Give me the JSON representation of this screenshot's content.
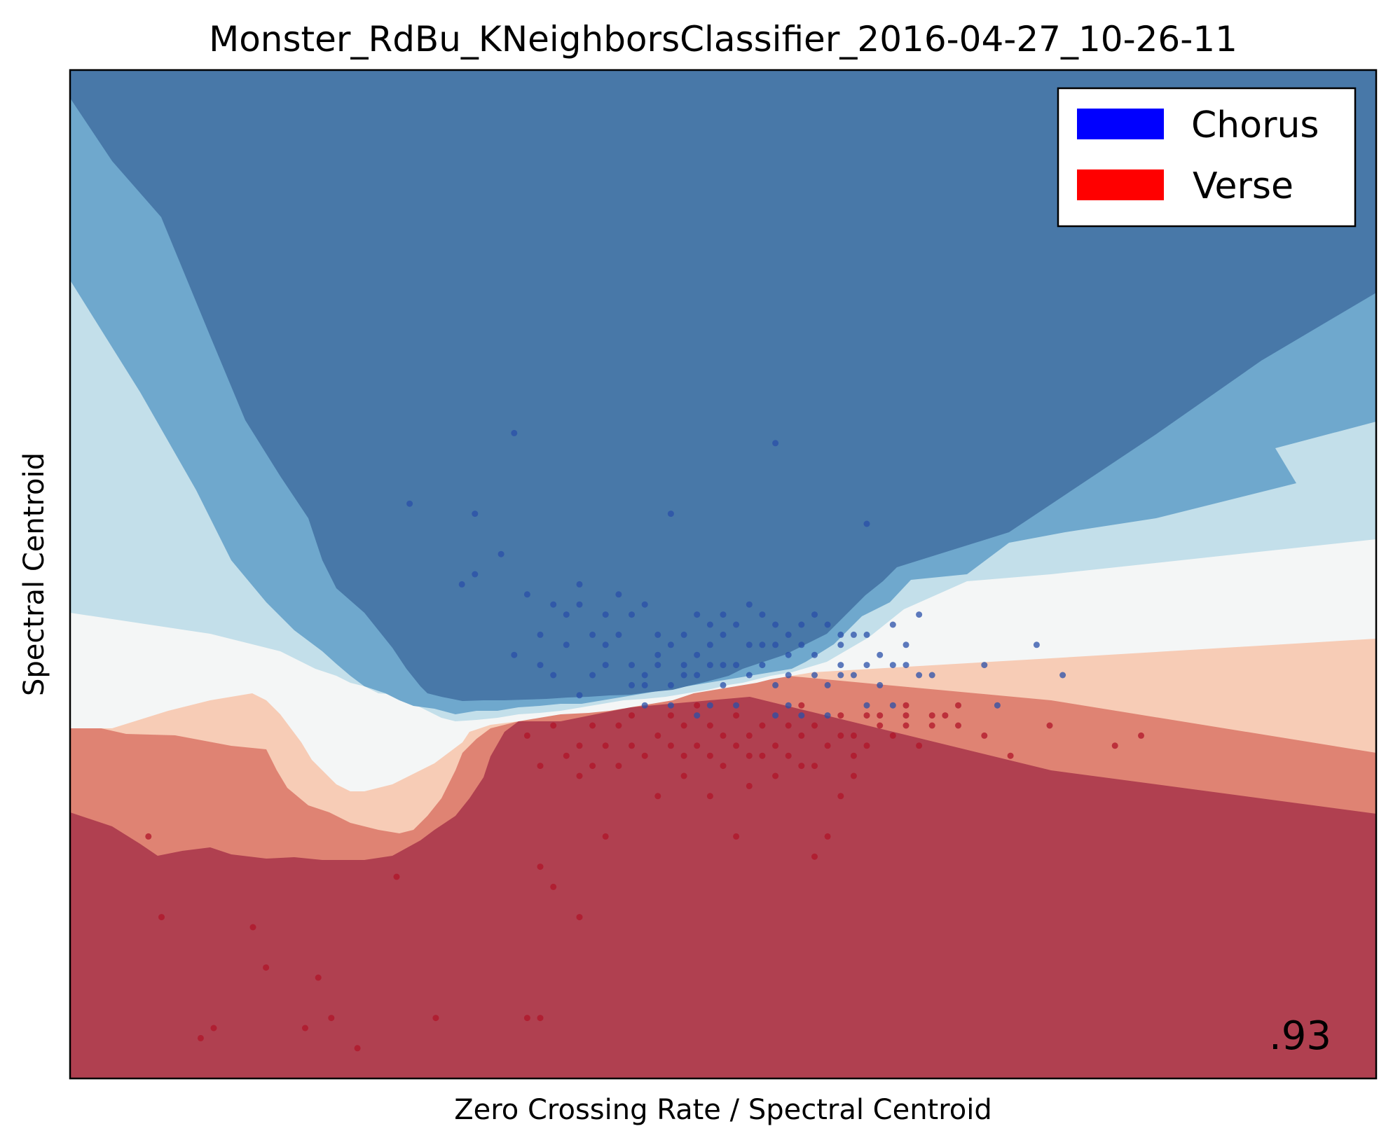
{
  "chart_data": {
    "type": "scatter",
    "title": "Monster_RdBu_KNeighborsClassifier_2016-04-27_10-26-11",
    "xlabel": "Zero Crossing Rate / Spectral Centroid",
    "ylabel": "Spectral Centroid",
    "xticks": false,
    "yticks": false,
    "grid": false,
    "score": ".93",
    "legend": {
      "placement": "top-right",
      "entries": [
        {
          "label": "Chorus",
          "color": "#0000ff"
        },
        {
          "label": "Verse",
          "color": "#ff0000"
        }
      ]
    },
    "colormap": "RdBu",
    "region_colors": {
      "chorus_strong": "#4878a8",
      "chorus_medium": "#6fa8cd",
      "chorus_light": "#c3dfea",
      "boundary": "#f4f6f6",
      "verse_light": "#f7ccb6",
      "verse_medium": "#df8373",
      "verse_strong": "#b04050"
    },
    "point_colors": {
      "chorus": "#2a4fa8",
      "verse": "#b01428"
    },
    "series": [
      {
        "name": "Chorus",
        "points": [
          [
            0.54,
            0.63
          ],
          [
            0.46,
            0.56
          ],
          [
            0.34,
            0.64
          ],
          [
            0.31,
            0.56
          ],
          [
            0.26,
            0.57
          ],
          [
            0.33,
            0.52
          ],
          [
            0.3,
            0.49
          ],
          [
            0.31,
            0.5
          ],
          [
            0.42,
            0.48
          ],
          [
            0.39,
            0.49
          ],
          [
            0.55,
            0.44
          ],
          [
            0.61,
            0.55
          ],
          [
            0.58,
            0.45
          ],
          [
            0.61,
            0.44
          ],
          [
            0.54,
            0.43
          ],
          [
            0.65,
            0.46
          ],
          [
            0.74,
            0.43
          ],
          [
            0.76,
            0.4
          ],
          [
            0.65,
            0.4
          ],
          [
            0.71,
            0.37
          ],
          [
            0.43,
            0.41
          ],
          [
            0.44,
            0.39
          ],
          [
            0.45,
            0.42
          ],
          [
            0.47,
            0.4
          ],
          [
            0.47,
            0.41
          ],
          [
            0.49,
            0.41
          ],
          [
            0.5,
            0.39
          ],
          [
            0.51,
            0.41
          ],
          [
            0.54,
            0.39
          ],
          [
            0.58,
            0.39
          ],
          [
            0.59,
            0.41
          ],
          [
            0.62,
            0.39
          ],
          [
            0.36,
            0.44
          ],
          [
            0.37,
            0.47
          ],
          [
            0.38,
            0.46
          ],
          [
            0.39,
            0.47
          ],
          [
            0.4,
            0.44
          ],
          [
            0.42,
            0.44
          ],
          [
            0.43,
            0.46
          ],
          [
            0.45,
            0.44
          ],
          [
            0.46,
            0.43
          ],
          [
            0.48,
            0.46
          ],
          [
            0.49,
            0.43
          ],
          [
            0.49,
            0.45
          ],
          [
            0.5,
            0.46
          ],
          [
            0.51,
            0.45
          ],
          [
            0.52,
            0.43
          ],
          [
            0.53,
            0.46
          ],
          [
            0.54,
            0.45
          ],
          [
            0.56,
            0.43
          ],
          [
            0.57,
            0.46
          ],
          [
            0.59,
            0.43
          ],
          [
            0.6,
            0.44
          ],
          [
            0.62,
            0.42
          ],
          [
            0.63,
            0.45
          ],
          [
            0.64,
            0.43
          ],
          [
            0.35,
            0.48
          ],
          [
            0.38,
            0.43
          ],
          [
            0.41,
            0.43
          ],
          [
            0.44,
            0.47
          ],
          [
            0.47,
            0.44
          ],
          [
            0.5,
            0.44
          ],
          [
            0.52,
            0.47
          ],
          [
            0.53,
            0.43
          ],
          [
            0.56,
            0.45
          ],
          [
            0.59,
            0.44
          ],
          [
            0.4,
            0.4
          ],
          [
            0.41,
            0.41
          ],
          [
            0.43,
            0.39
          ],
          [
            0.44,
            0.4
          ],
          [
            0.46,
            0.39
          ],
          [
            0.48,
            0.4
          ],
          [
            0.5,
            0.41
          ],
          [
            0.52,
            0.4
          ],
          [
            0.53,
            0.41
          ],
          [
            0.55,
            0.4
          ],
          [
            0.57,
            0.4
          ],
          [
            0.59,
            0.4
          ],
          [
            0.6,
            0.4
          ],
          [
            0.61,
            0.41
          ],
          [
            0.63,
            0.41
          ],
          [
            0.36,
            0.41
          ],
          [
            0.37,
            0.4
          ],
          [
            0.39,
            0.38
          ],
          [
            0.44,
            0.37
          ],
          [
            0.46,
            0.37
          ],
          [
            0.48,
            0.36
          ],
          [
            0.49,
            0.37
          ],
          [
            0.51,
            0.37
          ],
          [
            0.54,
            0.36
          ],
          [
            0.55,
            0.37
          ],
          [
            0.56,
            0.36
          ],
          [
            0.58,
            0.36
          ],
          [
            0.61,
            0.37
          ],
          [
            0.63,
            0.37
          ],
          [
            0.34,
            0.42
          ],
          [
            0.41,
            0.46
          ],
          [
            0.45,
            0.41
          ],
          [
            0.48,
            0.42
          ],
          [
            0.55,
            0.42
          ],
          [
            0.57,
            0.42
          ],
          [
            0.64,
            0.41
          ],
          [
            0.66,
            0.4
          ],
          [
            0.7,
            0.41
          ]
        ]
      },
      {
        "name": "Verse",
        "points": [
          [
            0.06,
            0.24
          ],
          [
            0.07,
            0.16
          ],
          [
            0.1,
            0.04
          ],
          [
            0.11,
            0.05
          ],
          [
            0.14,
            0.15
          ],
          [
            0.15,
            0.11
          ],
          [
            0.18,
            0.05
          ],
          [
            0.19,
            0.1
          ],
          [
            0.2,
            0.06
          ],
          [
            0.22,
            0.03
          ],
          [
            0.25,
            0.2
          ],
          [
            0.28,
            0.06
          ],
          [
            0.36,
            0.06
          ],
          [
            0.35,
            0.06
          ],
          [
            0.39,
            0.16
          ],
          [
            0.36,
            0.21
          ],
          [
            0.37,
            0.19
          ],
          [
            0.41,
            0.24
          ],
          [
            0.45,
            0.28
          ],
          [
            0.47,
            0.3
          ],
          [
            0.49,
            0.28
          ],
          [
            0.52,
            0.29
          ],
          [
            0.52,
            0.32
          ],
          [
            0.51,
            0.33
          ],
          [
            0.56,
            0.31
          ],
          [
            0.59,
            0.28
          ],
          [
            0.6,
            0.32
          ],
          [
            0.62,
            0.35
          ],
          [
            0.64,
            0.35
          ],
          [
            0.58,
            0.24
          ],
          [
            0.57,
            0.22
          ],
          [
            0.51,
            0.24
          ],
          [
            0.39,
            0.3
          ],
          [
            0.35,
            0.34
          ],
          [
            0.36,
            0.31
          ],
          [
            0.38,
            0.32
          ],
          [
            0.39,
            0.33
          ],
          [
            0.4,
            0.31
          ],
          [
            0.41,
            0.33
          ],
          [
            0.42,
            0.35
          ],
          [
            0.43,
            0.33
          ],
          [
            0.44,
            0.32
          ],
          [
            0.45,
            0.34
          ],
          [
            0.46,
            0.33
          ],
          [
            0.47,
            0.35
          ],
          [
            0.48,
            0.33
          ],
          [
            0.49,
            0.35
          ],
          [
            0.5,
            0.34
          ],
          [
            0.51,
            0.36
          ],
          [
            0.52,
            0.34
          ],
          [
            0.53,
            0.35
          ],
          [
            0.54,
            0.33
          ],
          [
            0.55,
            0.35
          ],
          [
            0.56,
            0.34
          ],
          [
            0.57,
            0.35
          ],
          [
            0.58,
            0.33
          ],
          [
            0.59,
            0.34
          ],
          [
            0.6,
            0.34
          ],
          [
            0.61,
            0.33
          ],
          [
            0.62,
            0.36
          ],
          [
            0.63,
            0.34
          ],
          [
            0.64,
            0.36
          ],
          [
            0.65,
            0.33
          ],
          [
            0.66,
            0.35
          ],
          [
            0.67,
            0.36
          ],
          [
            0.68,
            0.35
          ],
          [
            0.7,
            0.34
          ],
          [
            0.72,
            0.32
          ],
          [
            0.75,
            0.35
          ],
          [
            0.8,
            0.33
          ],
          [
            0.82,
            0.34
          ],
          [
            0.37,
            0.35
          ],
          [
            0.4,
            0.35
          ],
          [
            0.43,
            0.36
          ],
          [
            0.46,
            0.36
          ],
          [
            0.48,
            0.37
          ],
          [
            0.49,
            0.32
          ],
          [
            0.53,
            0.32
          ],
          [
            0.55,
            0.32
          ],
          [
            0.56,
            0.37
          ],
          [
            0.59,
            0.36
          ],
          [
            0.61,
            0.36
          ],
          [
            0.64,
            0.37
          ],
          [
            0.66,
            0.36
          ],
          [
            0.68,
            0.37
          ],
          [
            0.42,
            0.31
          ],
          [
            0.47,
            0.32
          ],
          [
            0.5,
            0.31
          ],
          [
            0.54,
            0.3
          ],
          [
            0.57,
            0.31
          ],
          [
            0.6,
            0.3
          ]
        ]
      }
    ]
  }
}
